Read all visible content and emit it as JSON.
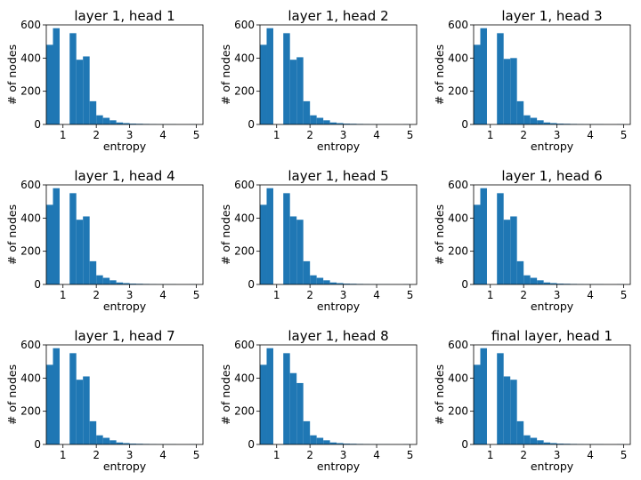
{
  "figure": {
    "bar_color": "#1f77b4",
    "axis_color": "#000000",
    "background": "#ffffff"
  },
  "chart_data": [
    {
      "type": "bar",
      "title": "layer 1, head 1",
      "xlabel": "entropy",
      "ylabel": "# of nodes",
      "xlim": [
        0.5,
        5.2
      ],
      "ylim": [
        0,
        600
      ],
      "xticks": [
        1,
        2,
        3,
        4,
        5
      ],
      "yticks": [
        0,
        200,
        400,
        600
      ],
      "bin_width": 0.2,
      "bins": [
        0.6,
        0.8,
        1.3,
        1.5,
        1.7,
        1.9,
        2.1,
        2.3,
        2.5,
        2.7,
        2.9,
        3.1,
        3.3,
        3.5,
        3.7,
        3.9,
        4.1,
        4.3,
        4.5,
        4.7,
        4.9
      ],
      "values": [
        480,
        580,
        550,
        390,
        410,
        140,
        55,
        40,
        25,
        12,
        8,
        5,
        4,
        3,
        2,
        1,
        1,
        1,
        0,
        0,
        1
      ]
    },
    {
      "type": "bar",
      "title": "layer 1, head 2",
      "xlabel": "entropy",
      "ylabel": "# of nodes",
      "xlim": [
        0.5,
        5.2
      ],
      "ylim": [
        0,
        600
      ],
      "xticks": [
        1,
        2,
        3,
        4,
        5
      ],
      "yticks": [
        0,
        200,
        400,
        600
      ],
      "bin_width": 0.2,
      "bins": [
        0.6,
        0.8,
        1.3,
        1.5,
        1.7,
        1.9,
        2.1,
        2.3,
        2.5,
        2.7,
        2.9,
        3.1,
        3.3,
        3.5,
        3.7,
        3.9,
        4.1,
        4.3,
        4.5,
        4.7,
        4.9
      ],
      "values": [
        480,
        580,
        550,
        390,
        405,
        140,
        55,
        40,
        25,
        12,
        8,
        5,
        4,
        3,
        2,
        1,
        1,
        1,
        0,
        0,
        1
      ]
    },
    {
      "type": "bar",
      "title": "layer 1, head 3",
      "xlabel": "entropy",
      "ylabel": "# of nodes",
      "xlim": [
        0.5,
        5.2
      ],
      "ylim": [
        0,
        600
      ],
      "xticks": [
        1,
        2,
        3,
        4,
        5
      ],
      "yticks": [
        0,
        200,
        400,
        600
      ],
      "bin_width": 0.2,
      "bins": [
        0.6,
        0.8,
        1.3,
        1.5,
        1.7,
        1.9,
        2.1,
        2.3,
        2.5,
        2.7,
        2.9,
        3.1,
        3.3,
        3.5,
        3.7,
        3.9,
        4.1,
        4.3,
        4.5,
        4.7,
        4.9
      ],
      "values": [
        480,
        580,
        550,
        395,
        400,
        140,
        55,
        40,
        25,
        12,
        8,
        5,
        4,
        3,
        2,
        1,
        1,
        1,
        0,
        0,
        1
      ]
    },
    {
      "type": "bar",
      "title": "layer 1, head 4",
      "xlabel": "entropy",
      "ylabel": "# of nodes",
      "xlim": [
        0.5,
        5.2
      ],
      "ylim": [
        0,
        600
      ],
      "xticks": [
        1,
        2,
        3,
        4,
        5
      ],
      "yticks": [
        0,
        200,
        400,
        600
      ],
      "bin_width": 0.2,
      "bins": [
        0.6,
        0.8,
        1.3,
        1.5,
        1.7,
        1.9,
        2.1,
        2.3,
        2.5,
        2.7,
        2.9,
        3.1,
        3.3,
        3.5,
        3.7,
        3.9,
        4.1,
        4.3,
        4.5,
        4.7,
        4.9
      ],
      "values": [
        480,
        580,
        550,
        390,
        410,
        140,
        55,
        40,
        25,
        12,
        8,
        5,
        4,
        3,
        2,
        1,
        1,
        1,
        0,
        0,
        1
      ]
    },
    {
      "type": "bar",
      "title": "layer 1, head 5",
      "xlabel": "entropy",
      "ylabel": "# of nodes",
      "xlim": [
        0.5,
        5.2
      ],
      "ylim": [
        0,
        600
      ],
      "xticks": [
        1,
        2,
        3,
        4,
        5
      ],
      "yticks": [
        0,
        200,
        400,
        600
      ],
      "bin_width": 0.2,
      "bins": [
        0.6,
        0.8,
        1.3,
        1.5,
        1.7,
        1.9,
        2.1,
        2.3,
        2.5,
        2.7,
        2.9,
        3.1,
        3.3,
        3.5,
        3.7,
        3.9,
        4.1,
        4.3,
        4.5,
        4.7,
        4.9
      ],
      "values": [
        480,
        580,
        550,
        410,
        390,
        140,
        55,
        40,
        25,
        12,
        8,
        5,
        4,
        3,
        2,
        1,
        1,
        1,
        0,
        0,
        1
      ]
    },
    {
      "type": "bar",
      "title": "layer 1, head 6",
      "xlabel": "entropy",
      "ylabel": "# of nodes",
      "xlim": [
        0.5,
        5.2
      ],
      "ylim": [
        0,
        600
      ],
      "xticks": [
        1,
        2,
        3,
        4,
        5
      ],
      "yticks": [
        0,
        200,
        400,
        600
      ],
      "bin_width": 0.2,
      "bins": [
        0.6,
        0.8,
        1.3,
        1.5,
        1.7,
        1.9,
        2.1,
        2.3,
        2.5,
        2.7,
        2.9,
        3.1,
        3.3,
        3.5,
        3.7,
        3.9,
        4.1,
        4.3,
        4.5,
        4.7,
        4.9
      ],
      "values": [
        480,
        580,
        550,
        390,
        410,
        140,
        55,
        40,
        25,
        12,
        8,
        5,
        4,
        3,
        2,
        1,
        1,
        1,
        0,
        0,
        1
      ]
    },
    {
      "type": "bar",
      "title": "layer 1, head 7",
      "xlabel": "entropy",
      "ylabel": "# of nodes",
      "xlim": [
        0.5,
        5.2
      ],
      "ylim": [
        0,
        600
      ],
      "xticks": [
        1,
        2,
        3,
        4,
        5
      ],
      "yticks": [
        0,
        200,
        400,
        600
      ],
      "bin_width": 0.2,
      "bins": [
        0.6,
        0.8,
        1.3,
        1.5,
        1.7,
        1.9,
        2.1,
        2.3,
        2.5,
        2.7,
        2.9,
        3.1,
        3.3,
        3.5,
        3.7,
        3.9,
        4.1,
        4.3,
        4.5,
        4.7,
        4.9
      ],
      "values": [
        480,
        580,
        550,
        390,
        410,
        140,
        55,
        40,
        25,
        12,
        8,
        5,
        4,
        3,
        2,
        1,
        1,
        1,
        0,
        0,
        1
      ]
    },
    {
      "type": "bar",
      "title": "layer 1, head 8",
      "xlabel": "entropy",
      "ylabel": "# of nodes",
      "xlim": [
        0.5,
        5.2
      ],
      "ylim": [
        0,
        600
      ],
      "xticks": [
        1,
        2,
        3,
        4,
        5
      ],
      "yticks": [
        0,
        200,
        400,
        600
      ],
      "bin_width": 0.2,
      "bins": [
        0.6,
        0.8,
        1.3,
        1.5,
        1.7,
        1.9,
        2.1,
        2.3,
        2.5,
        2.7,
        2.9,
        3.1,
        3.3,
        3.5,
        3.7,
        3.9,
        4.1,
        4.3,
        4.5,
        4.7,
        4.9
      ],
      "values": [
        480,
        580,
        550,
        430,
        370,
        140,
        55,
        40,
        25,
        12,
        8,
        5,
        4,
        3,
        2,
        1,
        1,
        1,
        0,
        0,
        1
      ]
    },
    {
      "type": "bar",
      "title": "final layer, head 1",
      "xlabel": "entropy",
      "ylabel": "# of nodes",
      "xlim": [
        0.5,
        5.2
      ],
      "ylim": [
        0,
        600
      ],
      "xticks": [
        1,
        2,
        3,
        4,
        5
      ],
      "yticks": [
        0,
        200,
        400,
        600
      ],
      "bin_width": 0.2,
      "bins": [
        0.6,
        0.8,
        1.3,
        1.5,
        1.7,
        1.9,
        2.1,
        2.3,
        2.5,
        2.7,
        2.9,
        3.1,
        3.3,
        3.5,
        3.7,
        3.9,
        4.1,
        4.3,
        4.5,
        4.7,
        4.9
      ],
      "values": [
        480,
        580,
        550,
        410,
        390,
        140,
        55,
        40,
        25,
        12,
        8,
        5,
        4,
        3,
        2,
        1,
        1,
        1,
        0,
        0,
        1
      ]
    }
  ]
}
